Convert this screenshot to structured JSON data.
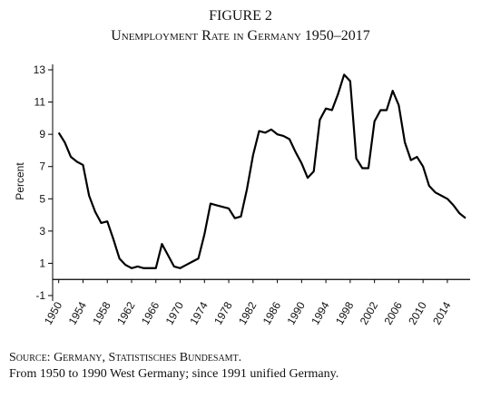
{
  "chart_data": {
    "type": "line",
    "title": "FIGURE 2",
    "subtitle": "Unemployment Rate in Germany 1950–2017",
    "ylabel": "Percent",
    "source": "Source: Germany, Statistisches Bundesamt.",
    "note": "From 1950 to 1990 West Germany; since 1991 unified Germany.",
    "x": [
      1950,
      1951,
      1952,
      1953,
      1954,
      1955,
      1956,
      1957,
      1958,
      1959,
      1960,
      1961,
      1962,
      1963,
      1964,
      1965,
      1966,
      1967,
      1968,
      1969,
      1970,
      1971,
      1972,
      1973,
      1974,
      1975,
      1976,
      1977,
      1978,
      1979,
      1980,
      1981,
      1982,
      1983,
      1984,
      1985,
      1986,
      1987,
      1988,
      1989,
      1990,
      1991,
      1992,
      1993,
      1994,
      1995,
      1996,
      1997,
      1998,
      1999,
      2000,
      2001,
      2002,
      2003,
      2004,
      2005,
      2006,
      2007,
      2008,
      2009,
      2010,
      2011,
      2012,
      2013,
      2014,
      2015,
      2016,
      2017
    ],
    "series": [
      {
        "name": "Unemployment rate",
        "color": "#000000",
        "values": [
          9.1,
          8.5,
          7.6,
          7.3,
          7.1,
          5.2,
          4.2,
          3.5,
          3.6,
          2.5,
          1.3,
          0.9,
          0.7,
          0.8,
          0.7,
          0.7,
          0.7,
          2.2,
          1.5,
          0.8,
          0.7,
          0.9,
          1.1,
          1.3,
          2.8,
          4.7,
          4.6,
          4.5,
          4.4,
          3.8,
          3.9,
          5.6,
          7.7,
          9.2,
          9.1,
          9.3,
          9.0,
          8.9,
          8.7,
          7.9,
          7.2,
          6.3,
          6.7,
          9.9,
          10.6,
          10.5,
          11.5,
          12.7,
          12.3,
          7.5,
          6.9,
          6.9,
          9.8,
          10.5,
          10.5,
          11.7,
          10.8,
          8.5,
          7.4,
          7.6,
          7.0,
          5.8,
          5.4,
          5.2,
          5.0,
          4.6,
          4.1,
          3.8
        ]
      }
    ],
    "xlim": [
      1949,
      2017
    ],
    "ylim": [
      -1,
      13
    ],
    "xticks": [
      1950,
      1954,
      1958,
      1962,
      1966,
      1970,
      1974,
      1978,
      1982,
      1986,
      1990,
      1994,
      1998,
      2002,
      2006,
      2010,
      2014
    ],
    "yticks": [
      -1,
      1,
      3,
      5,
      7,
      9,
      11,
      13
    ],
    "zero_line": true
  }
}
